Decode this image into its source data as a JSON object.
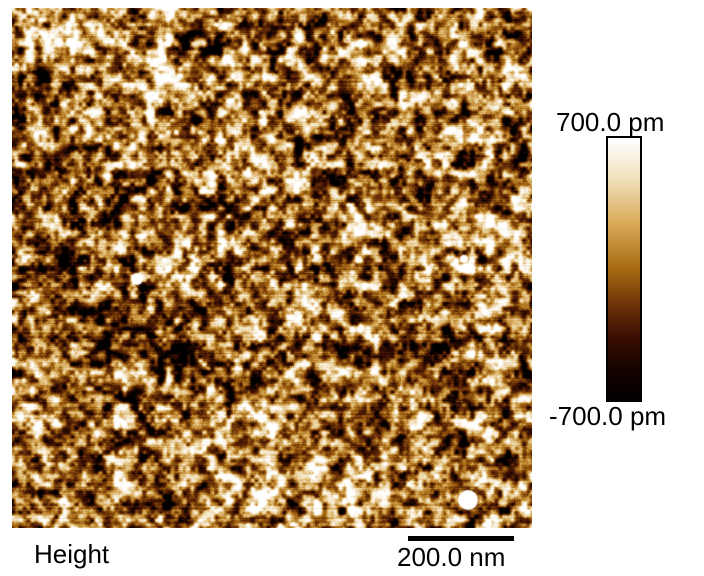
{
  "image": {
    "channel_label": "Height"
  },
  "colorbar": {
    "max_label": "700.0 pm",
    "min_label": "-700.0 pm",
    "colors": [
      "#000000",
      "#3a0e02",
      "#6b3208",
      "#a86a12",
      "#d9ac5a",
      "#f2e2c0",
      "#ffffff"
    ]
  },
  "scale_bar": {
    "label": "200.0 nm"
  }
}
